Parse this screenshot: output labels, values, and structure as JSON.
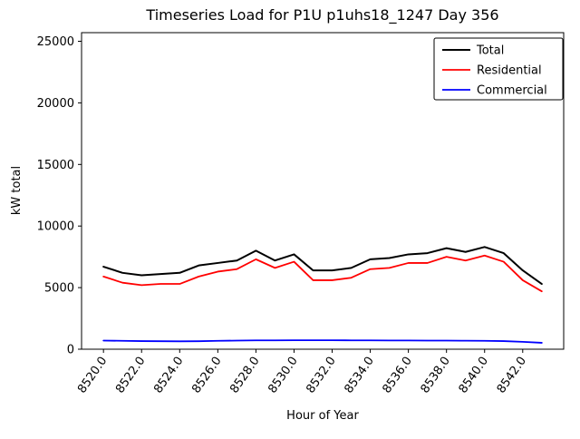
{
  "chart_data": {
    "type": "line",
    "title": "Timeseries Load for P1U p1uhs18_1247  Day 356",
    "xlabel": "Hour of Year",
    "ylabel": "kW total",
    "x": [
      8520,
      8521,
      8522,
      8523,
      8524,
      8525,
      8526,
      8527,
      8528,
      8529,
      8530,
      8531,
      8532,
      8533,
      8534,
      8535,
      8536,
      8537,
      8538,
      8539,
      8540,
      8541,
      8542,
      8543
    ],
    "series": [
      {
        "name": "Total",
        "color": "#000000",
        "line_width": 2,
        "values": [
          6700,
          6200,
          6000,
          6100,
          6200,
          6800,
          7000,
          7200,
          8000,
          7200,
          7700,
          6400,
          6400,
          6600,
          7300,
          7400,
          7700,
          7800,
          8200,
          7900,
          8300,
          7800,
          6400,
          5300
        ]
      },
      {
        "name": "Residential",
        "color": "#ff0000",
        "line_width": 1.8,
        "values": [
          5900,
          5400,
          5200,
          5300,
          5300,
          5900,
          6300,
          6500,
          7300,
          6600,
          7100,
          5600,
          5600,
          5800,
          6500,
          6600,
          7000,
          7000,
          7500,
          7200,
          7600,
          7100,
          5600,
          4700
        ]
      },
      {
        "name": "Commercial",
        "color": "#0000ff",
        "line_width": 1.8,
        "values": [
          700,
          680,
          660,
          650,
          640,
          650,
          680,
          700,
          720,
          720,
          730,
          730,
          730,
          720,
          720,
          710,
          710,
          700,
          700,
          690,
          680,
          660,
          600,
          520
        ]
      }
    ],
    "xticks": [
      8520,
      8522,
      8524,
      8526,
      8528,
      8530,
      8532,
      8534,
      8536,
      8538,
      8540,
      8542
    ],
    "xtick_labels": [
      "8520.0",
      "8522.0",
      "8524.0",
      "8526.0",
      "8528.0",
      "8530.0",
      "8532.0",
      "8534.0",
      "8536.0",
      "8538.0",
      "8540.0",
      "8542.0"
    ],
    "yticks": [
      0,
      5000,
      10000,
      15000,
      20000,
      25000
    ],
    "ytick_labels": [
      "0",
      "5000",
      "10000",
      "15000",
      "20000",
      "25000"
    ],
    "xlim": [
      8518.85,
      8544.15
    ],
    "ylim": [
      0,
      25700
    ],
    "grid": false,
    "legend_position": "upper right",
    "background_color": "#ffffff",
    "plot_border_color": "#000000"
  }
}
